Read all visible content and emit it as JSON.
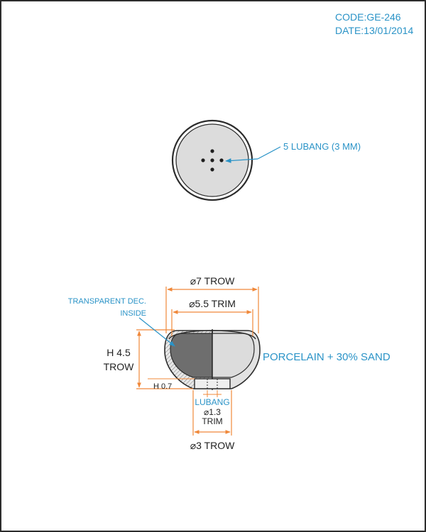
{
  "header": {
    "code": "CODE:GE-246",
    "date": "DATE:13/01/2014"
  },
  "top_view": {
    "holes_label": "5 LUBANG (3 MM)",
    "hole_count": 5
  },
  "section_view": {
    "outer_diameter": "⌀7 TROW",
    "inner_diameter": "⌀5.5 TRIM",
    "height_line1": "H 4.5",
    "height_line2": "TROW",
    "base_height": "H 0.7",
    "transparent_line1": "TRANSPARENT DEC.",
    "transparent_line2": "INSIDE",
    "material": "PORCELAIN + 30% SAND",
    "hole_line1": "LUBANG",
    "hole_line2": "⌀1.3",
    "hole_line3": "TRIM",
    "foot_diameter": "⌀3 TROW"
  },
  "colors": {
    "annotation_blue": "#2a93c7",
    "dimension_orange": "#f0883a",
    "outline": "#2c2c2c",
    "body_light": "#dcdcdc",
    "body_dark": "#6e6e6e"
  }
}
